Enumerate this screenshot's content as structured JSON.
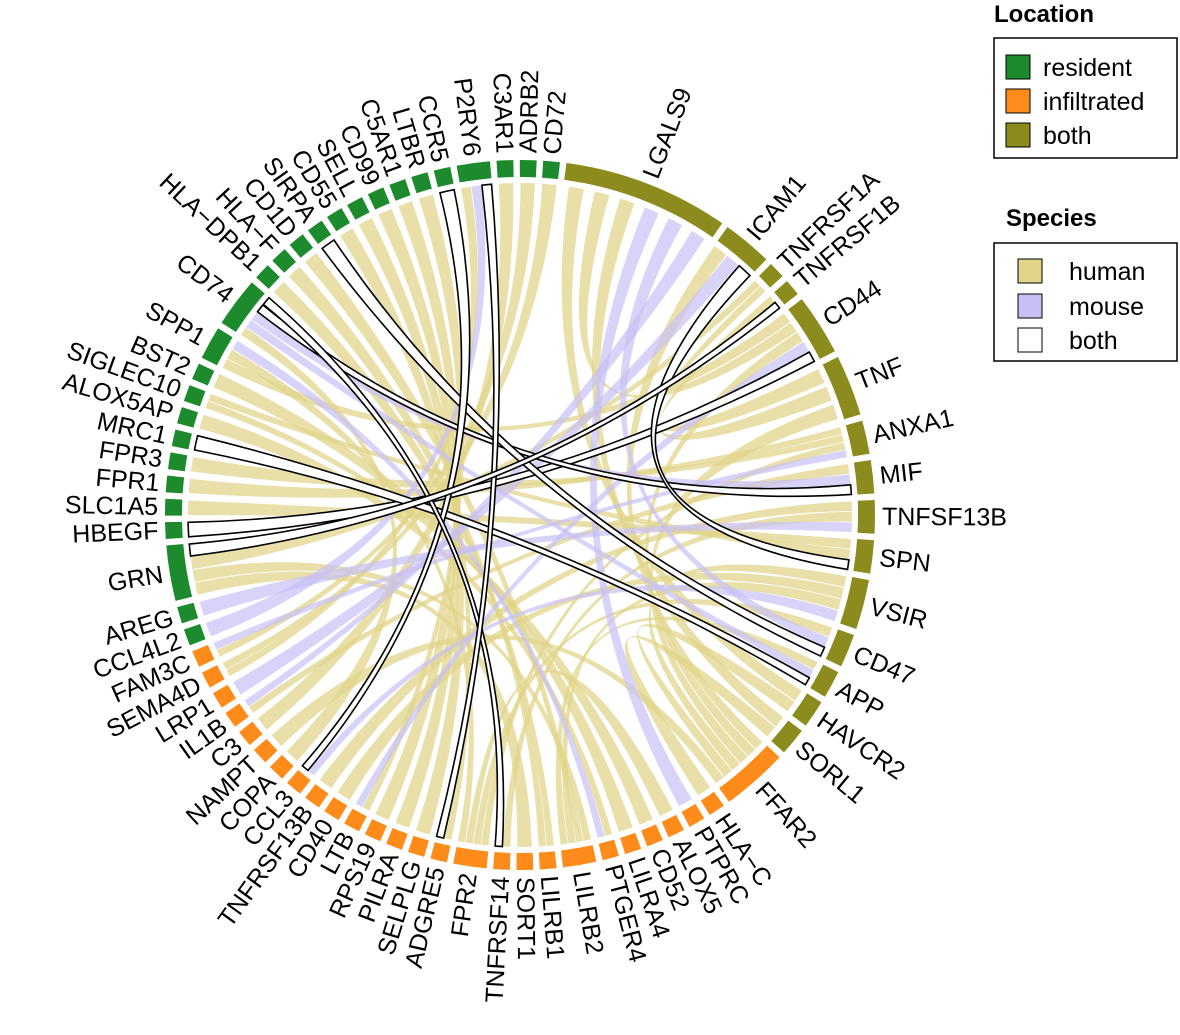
{
  "legends": {
    "location": {
      "title": "Location",
      "items": [
        {
          "label": "resident",
          "color": "#1e8a2e"
        },
        {
          "label": "infiltrated",
          "color": "#ff8c1a"
        },
        {
          "label": "both",
          "color": "#8c8c1e"
        }
      ]
    },
    "species": {
      "title": "Species",
      "items": [
        {
          "label": "human",
          "color": "#e0d488"
        },
        {
          "label": "mouse",
          "color": "#c8c0f5"
        },
        {
          "label": "both",
          "color": "#ffffff"
        }
      ]
    }
  },
  "sectors": [
    {
      "name": "GRN",
      "group": "resident",
      "span": 10
    },
    {
      "name": "HBEGF",
      "group": "resident",
      "span": 3
    },
    {
      "name": "SLC1A5",
      "group": "resident",
      "span": 3
    },
    {
      "name": "FPR1",
      "group": "resident",
      "span": 3
    },
    {
      "name": "FPR3",
      "group": "resident",
      "span": 3
    },
    {
      "name": "MRC1",
      "group": "resident",
      "span": 3
    },
    {
      "name": "ALOX5AP",
      "group": "resident",
      "span": 3
    },
    {
      "name": "SIGLEC10",
      "group": "resident",
      "span": 3
    },
    {
      "name": "BST2",
      "group": "resident",
      "span": 3
    },
    {
      "name": "SPP1",
      "group": "resident",
      "span": 6
    },
    {
      "name": "CD74",
      "group": "resident",
      "span": 9
    },
    {
      "name": "HLA−DPB1",
      "group": "resident",
      "span": 3
    },
    {
      "name": "HLA−F",
      "group": "resident",
      "span": 3
    },
    {
      "name": "CD1D",
      "group": "resident",
      "span": 3
    },
    {
      "name": "SIRPA",
      "group": "resident",
      "span": 3
    },
    {
      "name": "CD55",
      "group": "resident",
      "span": 3
    },
    {
      "name": "SELL",
      "group": "resident",
      "span": 3
    },
    {
      "name": "CD99",
      "group": "resident",
      "span": 3
    },
    {
      "name": "C5AR1",
      "group": "resident",
      "span": 3
    },
    {
      "name": "LTBR",
      "group": "resident",
      "span": 3
    },
    {
      "name": "CCR5",
      "group": "resident",
      "span": 3
    },
    {
      "name": "P2RY6",
      "group": "resident",
      "span": 6
    },
    {
      "name": "C3AR1",
      "group": "resident",
      "span": 3
    },
    {
      "name": "ADRB2",
      "group": "resident",
      "span": 3
    },
    {
      "name": "CD72",
      "group": "resident",
      "span": 3
    },
    {
      "name": "LGALS9",
      "group": "both",
      "span": 30
    },
    {
      "name": "ICAM1",
      "group": "both",
      "span": 9
    },
    {
      "name": "TNFRSF1A",
      "group": "both",
      "span": 3
    },
    {
      "name": "TNFRSF1B",
      "group": "both",
      "span": 3
    },
    {
      "name": "CD44",
      "group": "both",
      "span": 11
    },
    {
      "name": "TNF",
      "group": "both",
      "span": 11
    },
    {
      "name": "ANXA1",
      "group": "both",
      "span": 6
    },
    {
      "name": "MIF",
      "group": "both",
      "span": 6
    },
    {
      "name": "TNFSF13B",
      "group": "both",
      "span": 6
    },
    {
      "name": "SPN",
      "group": "both",
      "span": 6
    },
    {
      "name": "VSIR",
      "group": "both",
      "span": 9
    },
    {
      "name": "CD47",
      "group": "both",
      "span": 6
    },
    {
      "name": "APP",
      "group": "both",
      "span": 5
    },
    {
      "name": "HAVCR2",
      "group": "both",
      "span": 5
    },
    {
      "name": "SORL1",
      "group": "both",
      "span": 5
    },
    {
      "name": "FFAR2",
      "group": "infiltrated",
      "span": 12
    },
    {
      "name": "HLA−C",
      "group": "infiltrated",
      "span": 3
    },
    {
      "name": "PTPRC",
      "group": "infiltrated",
      "span": 3
    },
    {
      "name": "ALOX5",
      "group": "infiltrated",
      "span": 3
    },
    {
      "name": "CD52",
      "group": "infiltrated",
      "span": 3
    },
    {
      "name": "LILRA4",
      "group": "infiltrated",
      "span": 3
    },
    {
      "name": "PTGER4",
      "group": "infiltrated",
      "span": 3
    },
    {
      "name": "LILRB2",
      "group": "infiltrated",
      "span": 6
    },
    {
      "name": "LILRB1",
      "group": "infiltrated",
      "span": 3
    },
    {
      "name": "SORT1",
      "group": "infiltrated",
      "span": 3
    },
    {
      "name": "TNFRSF14",
      "group": "infiltrated",
      "span": 3
    },
    {
      "name": "FPR2",
      "group": "infiltrated",
      "span": 6
    },
    {
      "name": "ADGRE5",
      "group": "infiltrated",
      "span": 3
    },
    {
      "name": "SELPLG",
      "group": "infiltrated",
      "span": 3
    },
    {
      "name": "PILRA",
      "group": "infiltrated",
      "span": 3
    },
    {
      "name": "RPS19",
      "group": "infiltrated",
      "span": 3
    },
    {
      "name": "LTB",
      "group": "infiltrated",
      "span": 3
    },
    {
      "name": "CD40",
      "group": "infiltrated",
      "span": 3
    },
    {
      "name": "TNFRSF13B",
      "group": "infiltrated",
      "span": 3
    },
    {
      "name": "CCL3",
      "group": "infiltrated",
      "span": 3
    },
    {
      "name": "COPA",
      "group": "infiltrated",
      "span": 3
    },
    {
      "name": "NAMPT",
      "group": "infiltrated",
      "span": 3
    },
    {
      "name": "C3",
      "group": "infiltrated",
      "span": 3
    },
    {
      "name": "IL1B",
      "group": "infiltrated",
      "span": 3
    },
    {
      "name": "LRP1",
      "group": "infiltrated",
      "span": 3
    },
    {
      "name": "SEMA4D",
      "group": "infiltrated",
      "span": 3
    },
    {
      "name": "FAM3C",
      "group": "infiltrated",
      "span": 3
    },
    {
      "name": "CCL4L2",
      "group": "resident",
      "span": 3
    },
    {
      "name": "AREG",
      "group": "resident",
      "span": 3
    }
  ],
  "links": [
    {
      "from": "GRN",
      "to": "SORT1",
      "species": "human"
    },
    {
      "from": "GRN",
      "to": "LILRB2",
      "species": "human"
    },
    {
      "from": "GRN",
      "to": "TNFRSF1A",
      "species": "human"
    },
    {
      "from": "HBEGF",
      "to": "CD44",
      "species": "both"
    },
    {
      "from": "SLC1A5",
      "to": "SPN",
      "species": "human"
    },
    {
      "from": "FPR1",
      "to": "ANXA1",
      "species": "human"
    },
    {
      "from": "FPR3",
      "to": "ANXA1",
      "species": "human"
    },
    {
      "from": "MRC1",
      "to": "APP",
      "species": "both"
    },
    {
      "from": "ALOX5AP",
      "to": "PTGER4",
      "species": "human"
    },
    {
      "from": "SIGLEC10",
      "to": "CD52",
      "species": "human"
    },
    {
      "from": "BST2",
      "to": "LILRA4",
      "species": "human"
    },
    {
      "from": "SPP1",
      "to": "CD44",
      "species": "human"
    },
    {
      "from": "SPP1",
      "to": "PTGER4",
      "species": "mouse"
    },
    {
      "from": "CD74",
      "to": "MIF",
      "species": "both"
    },
    {
      "from": "CD74",
      "to": "APP",
      "species": "mouse"
    },
    {
      "from": "CD74",
      "to": "COPA",
      "species": "human"
    },
    {
      "from": "HLA−DPB1",
      "to": "LILRB1",
      "species": "human"
    },
    {
      "from": "HLA−F",
      "to": "LILRB1",
      "species": "human"
    },
    {
      "from": "CD1D",
      "to": "LILRB2",
      "species": "human"
    },
    {
      "from": "SIRPA",
      "to": "CD47",
      "species": "both"
    },
    {
      "from": "CD55",
      "to": "ADGRE5",
      "species": "human"
    },
    {
      "from": "SELL",
      "to": "SELPLG",
      "species": "human"
    },
    {
      "from": "CD99",
      "to": "PILRA",
      "species": "human"
    },
    {
      "from": "C5AR1",
      "to": "RPS19",
      "species": "human"
    },
    {
      "from": "LTBR",
      "to": "LTB",
      "species": "human"
    },
    {
      "from": "CCR5",
      "to": "CCL3",
      "species": "both"
    },
    {
      "from": "P2RY6",
      "to": "CCL4L2",
      "species": "mouse"
    },
    {
      "from": "P2RY6",
      "to": "SEMA4D",
      "species": "human"
    },
    {
      "from": "C3AR1",
      "to": "C3",
      "species": "human"
    },
    {
      "from": "ADRB2",
      "to": "FAM3C",
      "species": "human"
    },
    {
      "from": "CD72",
      "to": "SEMA4D",
      "species": "human"
    },
    {
      "from": "LGALS9",
      "to": "HAVCR2",
      "species": "human"
    },
    {
      "from": "LGALS9",
      "to": "CD44",
      "species": "human"
    },
    {
      "from": "LGALS9",
      "to": "PTPRC",
      "species": "mouse"
    },
    {
      "from": "LGALS9",
      "to": "CD47",
      "species": "mouse"
    },
    {
      "from": "LGALS9",
      "to": "SORL1",
      "species": "human"
    },
    {
      "from": "LGALS9",
      "to": "IL1B",
      "species": "mouse"
    },
    {
      "from": "ICAM1",
      "to": "SPN",
      "species": "both"
    },
    {
      "from": "ICAM1",
      "to": "LRP1",
      "species": "mouse"
    },
    {
      "from": "ICAM1",
      "to": "FFAR2",
      "species": "human"
    },
    {
      "from": "TNFRSF1A",
      "to": "TNF",
      "species": "human"
    },
    {
      "from": "TNFRSF1B",
      "to": "TNF",
      "species": "human"
    },
    {
      "from": "CD44",
      "to": "FFAR2",
      "species": "human"
    },
    {
      "from": "TNF",
      "to": "FFAR2",
      "species": "human"
    },
    {
      "from": "ANXA1",
      "to": "FPR2",
      "species": "human"
    },
    {
      "from": "MIF",
      "to": "CD74",
      "species": "mouse"
    },
    {
      "from": "TNFSF13B",
      "to": "TNFRSF13B",
      "species": "human"
    },
    {
      "from": "TNFSF13B",
      "to": "AREG",
      "species": "mouse"
    },
    {
      "from": "SPN",
      "to": "SIGLEC10",
      "species": "human"
    },
    {
      "from": "VSIR",
      "to": "FFAR2",
      "species": "human"
    },
    {
      "from": "VSIR",
      "to": "CD40",
      "species": "human"
    },
    {
      "from": "VSIR",
      "to": "LILRB2",
      "species": "human"
    },
    {
      "from": "CD47",
      "to": "FPR2",
      "species": "human"
    },
    {
      "from": "APP",
      "to": "LILRB2",
      "species": "human"
    },
    {
      "from": "HAVCR2",
      "to": "FFAR2",
      "species": "human"
    },
    {
      "from": "SORL1",
      "to": "HLA−C",
      "species": "human"
    },
    {
      "from": "FFAR2",
      "to": "NAMPT",
      "species": "human"
    },
    {
      "from": "ALOX5",
      "to": "FPR2",
      "species": "human"
    },
    {
      "from": "TNFRSF14",
      "to": "CD74",
      "species": "both"
    },
    {
      "from": "FPR2",
      "to": "SPP1",
      "species": "human"
    },
    {
      "from": "ADGRE5",
      "to": "P2RY6",
      "species": "both"
    },
    {
      "from": "GRN",
      "to": "TNFRSF1B",
      "species": "both"
    },
    {
      "from": "ANXA1",
      "to": "FAM3C",
      "species": "mouse"
    },
    {
      "from": "CD44",
      "to": "LTB",
      "species": "mouse"
    },
    {
      "from": "TNFSF13B",
      "to": "TNFRSF14",
      "species": "human"
    },
    {
      "from": "MIF",
      "to": "IL1B",
      "species": "human"
    },
    {
      "from": "VSIR",
      "to": "CCL3",
      "species": "mouse"
    }
  ]
}
